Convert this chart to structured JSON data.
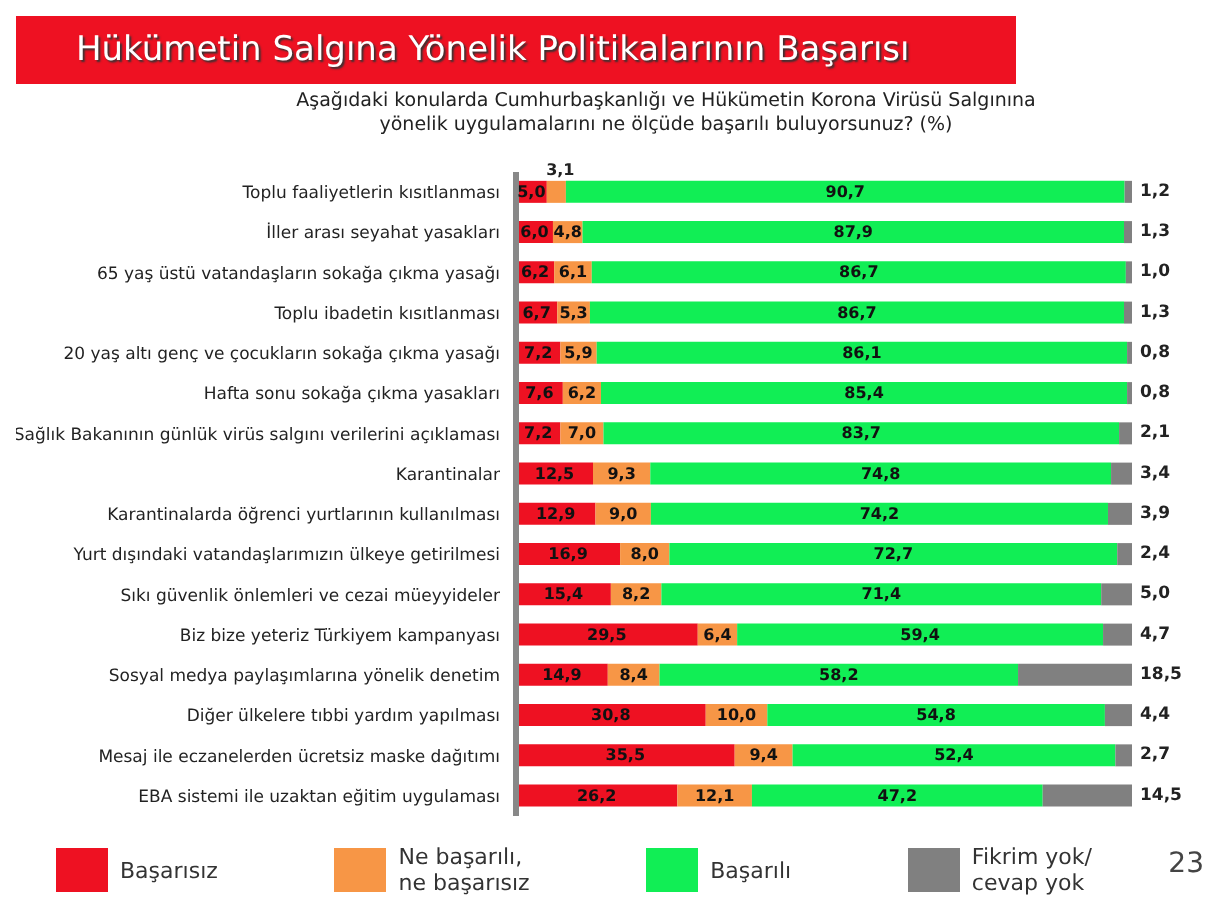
{
  "chart_data": {
    "type": "bar",
    "orientation": "horizontal",
    "stacked": true,
    "legend": "bottom",
    "title": "Hükümetin Salgına Yönelik Politikalarının Başarısı",
    "subtitle": "Aşağıdaki konularda Cumhurbaşkanlığı ve Hükümetin Korona Virüsü Salgınına yönelik uygulamalarını ne ölçüde başarılı buluyorsunuz? (%)",
    "annotations": [
      "23"
    ],
    "categories": [
      "Toplu faaliyetlerin kısıtlanması",
      "İller arası seyahat yasakları",
      "65 yaş üstü vatandaşların sokağa çıkma yasağı",
      "Toplu ibadetin kısıtlanması",
      "20 yaş altı genç ve çocukların sokağa çıkma yasağı",
      "Hafta sonu sokağa çıkma yasakları",
      "Sağlık Bakanının günlük virüs salgını verilerini açıklaması",
      "Karantinalar",
      "Karantinalarda öğrenci yurtlarının kullanılması",
      "Yurt dışındaki vatandaşlarımızın ülkeye getirilmesi",
      "Sıkı güvenlik önlemleri ve cezai müeyyideler",
      "Biz bize yeteriz Türkiyem kampanyası",
      "Sosyal medya paylaşımlarına yönelik denetim",
      "Diğer ülkelere tıbbi yardım yapılması",
      "Mesaj ile eczanelerden ücretsiz maske dağıtımı",
      "EBA sistemi ile uzaktan eğitim uygulaması"
    ],
    "series": [
      {
        "name": "Başarısız",
        "color": "#ee1122",
        "values": [
          5.0,
          6.0,
          6.2,
          6.7,
          7.2,
          7.6,
          7.2,
          12.5,
          12.9,
          16.9,
          15.4,
          29.5,
          14.9,
          30.8,
          35.5,
          26.2
        ],
        "value_labels": [
          "5,0",
          "6,0",
          "6,2",
          "6,7",
          "7,2",
          "7,6",
          "7,2",
          "12,5",
          "12,9",
          "16,9",
          "15,4",
          "29,5",
          "14,9",
          "30,8",
          "35,5",
          "26,2"
        ]
      },
      {
        "name": "Ne başarılı,\nne başarısız",
        "color": "#f79646",
        "values": [
          3.1,
          4.8,
          6.1,
          5.3,
          5.9,
          6.2,
          7.0,
          9.3,
          9.0,
          8.0,
          8.2,
          6.4,
          8.4,
          10.0,
          9.4,
          12.1
        ],
        "value_labels": [
          "3,1",
          "4,8",
          "6,1",
          "5,3",
          "5,9",
          "6,2",
          "7,0",
          "9,3",
          "9,0",
          "8,0",
          "8,2",
          "6,4",
          "8,4",
          "10,0",
          "9,4",
          "12,1"
        ]
      },
      {
        "name": "Başarılı",
        "color": "#11ee55",
        "values": [
          90.7,
          87.9,
          86.7,
          86.7,
          86.1,
          85.4,
          83.7,
          74.8,
          74.2,
          72.7,
          71.4,
          59.4,
          58.2,
          54.8,
          52.4,
          47.2
        ],
        "value_labels": [
          "90,7",
          "87,9",
          "86,7",
          "86,7",
          "86,1",
          "85,4",
          "83,7",
          "74,8",
          "74,2",
          "72,7",
          "71,4",
          "59,4",
          "58,2",
          "54,8",
          "52,4",
          "47,2"
        ]
      },
      {
        "name": "Fikrim yok/\ncevap yok",
        "color": "#808080",
        "values": [
          1.2,
          1.3,
          1.0,
          1.3,
          0.8,
          0.8,
          2.1,
          3.4,
          3.9,
          2.4,
          5.0,
          4.7,
          18.5,
          4.4,
          2.7,
          14.5
        ],
        "value_labels": [
          "1,2",
          "1,3",
          "1,0",
          "1,3",
          "0,8",
          "0,8",
          "2,1",
          "3,4",
          "3,9",
          "2,4",
          "5,0",
          "4,7",
          "18,5",
          "4,4",
          "2,7",
          "14,5"
        ]
      }
    ]
  }
}
